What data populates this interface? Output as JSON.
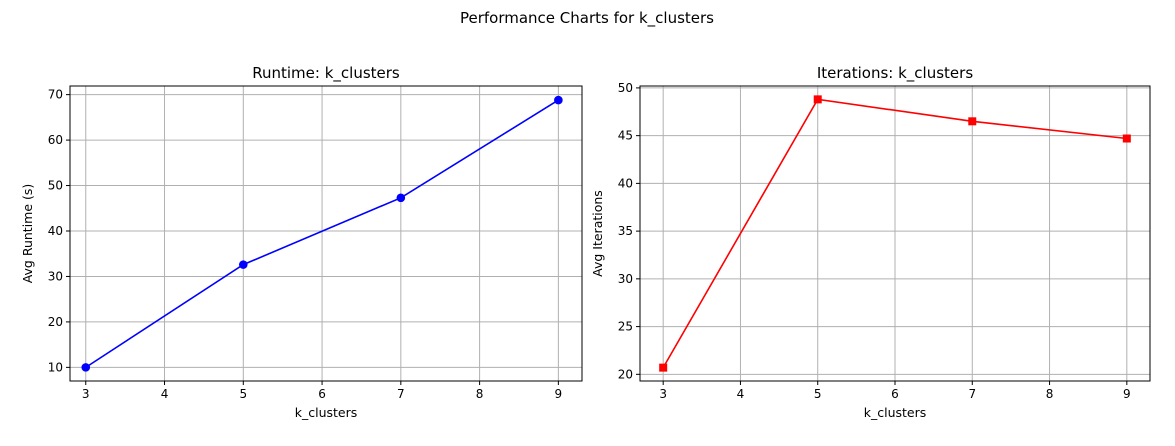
{
  "figure": {
    "suptitle": "Performance Charts for k_clusters"
  },
  "chart_data": [
    {
      "type": "line",
      "title": "Runtime: k_clusters",
      "xlabel": "k_clusters",
      "ylabel": "Avg Runtime (s)",
      "x": [
        3,
        5,
        7,
        9
      ],
      "series": [
        {
          "values": [
            10.0,
            32.6,
            47.3,
            68.8
          ],
          "color": "#0000ff",
          "marker": "circle"
        }
      ],
      "xlim": [
        2.8,
        9.3
      ],
      "ylim": [
        7.0,
        71.9
      ],
      "xticks": [
        3,
        4,
        5,
        6,
        7,
        8,
        9
      ],
      "yticks": [
        10,
        20,
        30,
        40,
        50,
        60,
        70
      ],
      "grid": true
    },
    {
      "type": "line",
      "title": "Iterations: k_clusters",
      "xlabel": "k_clusters",
      "ylabel": "Avg Iterations",
      "x": [
        3,
        5,
        7,
        9
      ],
      "series": [
        {
          "values": [
            20.7,
            48.8,
            46.5,
            44.7
          ],
          "color": "#ff0000",
          "marker": "square"
        }
      ],
      "xlim": [
        2.7,
        9.3
      ],
      "ylim": [
        19.3,
        50.2
      ],
      "xticks": [
        3,
        4,
        5,
        6,
        7,
        8,
        9
      ],
      "yticks": [
        20,
        25,
        30,
        35,
        40,
        45,
        50
      ],
      "grid": true
    }
  ]
}
